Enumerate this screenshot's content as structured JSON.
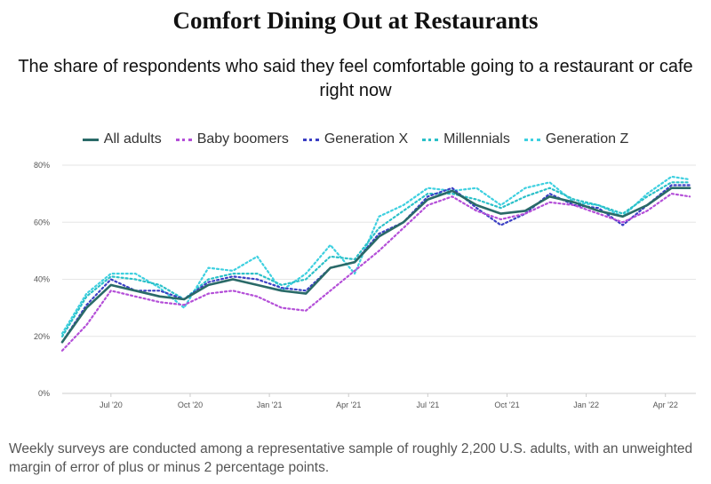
{
  "chart_data": {
    "type": "line",
    "title": "Comfort Dining Out at Restaurants",
    "subtitle": "The share of respondents who said they feel comfortable going to a restaurant or cafe right now",
    "footnote": "Weekly surveys are conducted among a representative sample of roughly 2,200 U.S. adults, with an unweighted margin of error of plus or minus 2 percentage points.",
    "xlabel": "",
    "ylabel": "",
    "ylim": [
      0,
      80
    ],
    "yticks": [
      0,
      20,
      40,
      60,
      80
    ],
    "ytick_labels": [
      "0%",
      "20%",
      "40%",
      "60%",
      "80%"
    ],
    "xlim": [
      0,
      104
    ],
    "xticks": [
      8,
      21,
      34,
      47,
      60,
      73,
      86,
      99
    ],
    "xtick_labels": [
      "Jul '20",
      "Oct '20",
      "Jan '21",
      "Apr '21",
      "Jul '21",
      "Oct '21",
      "Jan '22",
      "Apr '22"
    ],
    "grid": true,
    "legend_position": "top",
    "x": [
      0,
      4,
      8,
      12,
      16,
      20,
      24,
      28,
      32,
      36,
      40,
      44,
      48,
      52,
      56,
      60,
      64,
      68,
      72,
      76,
      80,
      84,
      88,
      92,
      96,
      100,
      103
    ],
    "series": [
      {
        "name": "All adults",
        "color": "#2a6a68",
        "style": "solid",
        "values": [
          18,
          30,
          38,
          36,
          34,
          33,
          38,
          40,
          38,
          36,
          35,
          44,
          46,
          55,
          60,
          68,
          71,
          66,
          63,
          64,
          69,
          67,
          64,
          62,
          66,
          72,
          72
        ]
      },
      {
        "name": "Baby boomers",
        "color": "#b44fd8",
        "style": "dotted",
        "values": [
          15,
          24,
          36,
          34,
          32,
          31,
          35,
          36,
          34,
          30,
          29,
          36,
          43,
          50,
          58,
          66,
          69,
          64,
          61,
          63,
          67,
          66,
          63,
          60,
          64,
          70,
          69
        ]
      },
      {
        "name": "Generation X",
        "color": "#3b3fc4",
        "style": "dotted",
        "values": [
          18,
          31,
          40,
          36,
          36,
          33,
          39,
          41,
          40,
          37,
          36,
          44,
          46,
          56,
          60,
          69,
          72,
          65,
          59,
          63,
          70,
          66,
          65,
          59,
          66,
          73,
          73
        ]
      },
      {
        "name": "Millennials",
        "color": "#2bc0c8",
        "style": "dotted",
        "values": [
          20,
          34,
          41,
          40,
          38,
          33,
          40,
          42,
          42,
          38,
          40,
          48,
          47,
          58,
          64,
          70,
          70,
          68,
          65,
          69,
          72,
          68,
          66,
          63,
          69,
          74,
          74
        ]
      },
      {
        "name": "Generation Z",
        "color": "#3ed0e0",
        "style": "dotted",
        "values": [
          21,
          35,
          42,
          42,
          37,
          30,
          44,
          43,
          48,
          36,
          42,
          52,
          42,
          62,
          66,
          72,
          71,
          72,
          66,
          72,
          74,
          67,
          66,
          62,
          70,
          76,
          75
        ]
      }
    ]
  }
}
